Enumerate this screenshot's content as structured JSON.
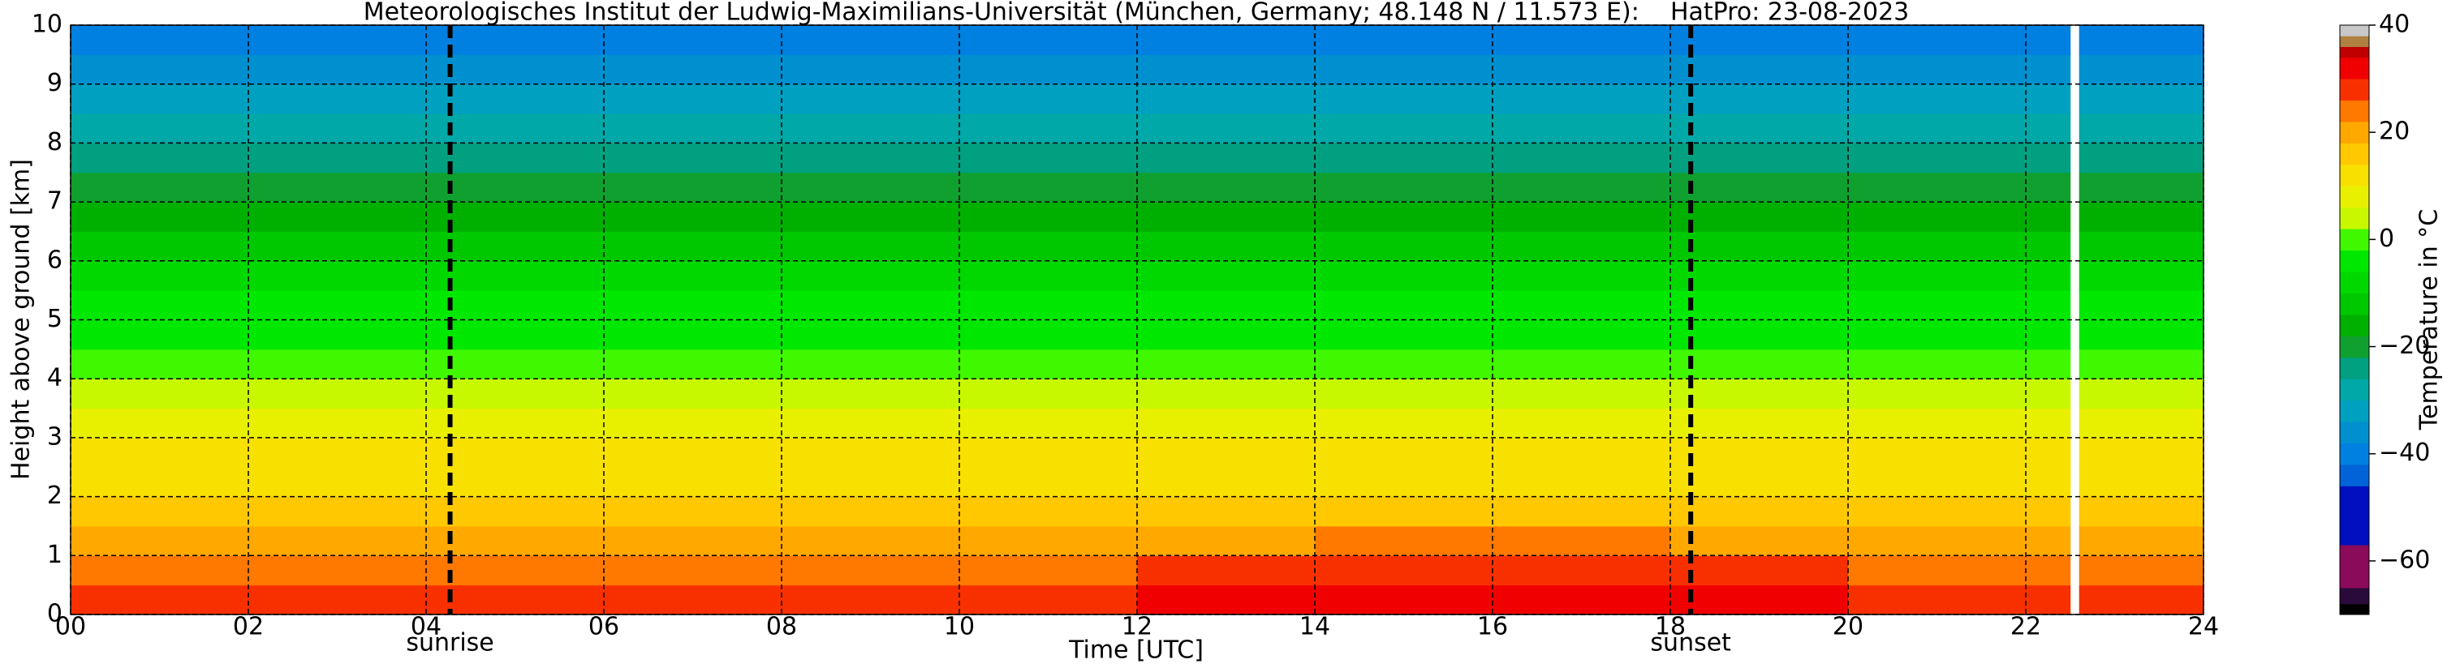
{
  "chart_data": {
    "type": "heatmap",
    "title": "Meteorologisches Institut der Ludwig-Maximilians-Universität (München, Germany; 48.148 N / 11.573 E):    HatPro: 23-08-2023",
    "x_label": "Time [UTC]",
    "y_label": "Height above ground [km]",
    "xbins": [
      0,
      2,
      4,
      6,
      8,
      10,
      12,
      14,
      16,
      18,
      20,
      22,
      22.5,
      22.6,
      24
    ],
    "ybins": [
      0,
      0.5,
      1,
      1.5,
      2,
      2.5,
      3,
      3.5,
      4,
      4.5,
      5,
      5.5,
      6,
      6.5,
      7,
      7.5,
      8,
      8.5,
      9,
      9.5,
      10
    ],
    "values": [
      [
        27,
        26,
        26,
        27,
        28,
        29,
        30,
        31,
        31,
        30,
        29,
        28,
        null,
        28
      ],
      [
        24,
        23,
        23,
        23,
        24,
        25,
        26,
        27,
        27,
        26,
        25,
        24,
        null,
        24
      ],
      [
        20,
        20,
        20,
        20,
        20,
        21,
        21,
        22,
        22,
        21,
        21,
        20,
        null,
        20
      ],
      [
        17,
        17,
        17,
        17,
        17,
        17,
        17,
        17,
        17,
        17,
        17,
        17,
        null,
        17
      ],
      [
        13,
        13,
        13,
        13,
        13,
        13,
        13,
        13,
        13,
        13,
        13,
        13,
        null,
        13
      ],
      [
        11,
        11,
        11,
        11,
        11,
        11,
        11,
        11,
        11,
        11,
        11,
        11,
        null,
        11
      ],
      [
        8,
        8,
        8,
        8,
        8,
        8,
        8,
        8,
        8,
        8,
        8,
        8,
        null,
        8
      ],
      [
        4,
        4,
        4,
        4,
        4,
        4,
        4,
        4,
        4,
        4,
        4,
        4,
        null,
        4
      ],
      [
        0,
        0,
        0,
        0,
        0,
        0,
        0,
        0,
        0,
        0,
        0,
        0,
        null,
        0
      ],
      [
        -3,
        -3,
        -3,
        -3,
        -3,
        -3,
        -3,
        -3,
        -3,
        -3,
        -3,
        -3,
        null,
        -3
      ],
      [
        -6,
        -6,
        -6,
        -6,
        -6,
        -6,
        -6,
        -6,
        -6,
        -6,
        -6,
        -6,
        null,
        -6
      ],
      [
        -9,
        -9,
        -9,
        -9,
        -9,
        -9,
        -9,
        -9,
        -9,
        -9,
        -9,
        -9,
        null,
        -9
      ],
      [
        -12,
        -12,
        -12,
        -12,
        -12,
        -12,
        -12,
        -12,
        -12,
        -12,
        -12,
        -12,
        null,
        -12
      ],
      [
        -17,
        -17,
        -17,
        -17,
        -17,
        -17,
        -17,
        -17,
        -17,
        -17,
        -17,
        -17,
        null,
        -17
      ],
      [
        -21,
        -21,
        -21,
        -21,
        -21,
        -21,
        -21,
        -21,
        -21,
        -21,
        -21,
        -21,
        null,
        -21
      ],
      [
        -25,
        -25,
        -25,
        -25,
        -25,
        -25,
        -25,
        -25,
        -25,
        -25,
        -25,
        -25,
        null,
        -25
      ],
      [
        -29,
        -29,
        -29,
        -29,
        -29,
        -29,
        -29,
        -29,
        -29,
        -29,
        -29,
        -29,
        null,
        -29
      ],
      [
        -33,
        -33,
        -33,
        -33,
        -33,
        -33,
        -33,
        -33,
        -33,
        -33,
        -33,
        -33,
        null,
        -33
      ],
      [
        -37,
        -37,
        -37,
        -37,
        -37,
        -37,
        -37,
        -37,
        -37,
        -37,
        -37,
        -37,
        null,
        -37
      ],
      [
        -41,
        -41,
        -41,
        -41,
        -41,
        -41,
        -41,
        -41,
        -41,
        -41,
        -41,
        -41,
        null,
        -41
      ]
    ],
    "xlim": [
      0,
      24
    ],
    "xticks": [
      {
        "value": 0,
        "label": "00"
      },
      {
        "value": 2,
        "label": "02"
      },
      {
        "value": 4,
        "label": "04"
      },
      {
        "value": 6,
        "label": "06"
      },
      {
        "value": 8,
        "label": "08"
      },
      10,
      12,
      14,
      16,
      18,
      20,
      22,
      24
    ],
    "ylim": [
      0,
      10
    ],
    "yticks": [
      0,
      1,
      2,
      3,
      4,
      5,
      6,
      7,
      8,
      9,
      10
    ],
    "grid": true,
    "annotations": [
      {
        "label": "sunrise",
        "x": 4.27
      },
      {
        "label": "sunset",
        "x": 18.23
      }
    ],
    "colorbar": {
      "label": "Temperature in °C",
      "zlim": [
        -70,
        40
      ],
      "ticks": [
        {
          "value": -60,
          "label": "−60"
        },
        {
          "value": -40,
          "label": "−40"
        },
        {
          "value": -20,
          "label": "−20"
        },
        0,
        20,
        40
      ],
      "levels": [
        -70,
        -68,
        -65,
        -57,
        -46,
        -42,
        -38,
        -34,
        -30,
        -26,
        -22,
        -18,
        -14,
        -10,
        -6,
        -2,
        2,
        6,
        10,
        14,
        18,
        22,
        26,
        30,
        34,
        36,
        38,
        40
      ],
      "colors": [
        "#000000",
        "#2a0a3a",
        "#8c0a5a",
        "#0010c0",
        "#0064d8",
        "#0080e0",
        "#0090d0",
        "#00a0c0",
        "#00a8a8",
        "#00a080",
        "#10a030",
        "#00b000",
        "#00c800",
        "#00d800",
        "#00e800",
        "#40f800",
        "#c8f800",
        "#e8f000",
        "#f8e000",
        "#ffc800",
        "#ffa800",
        "#ff7800",
        "#f83000",
        "#f00000",
        "#c00000",
        "#b08040",
        "#c8c8c8"
      ]
    }
  }
}
